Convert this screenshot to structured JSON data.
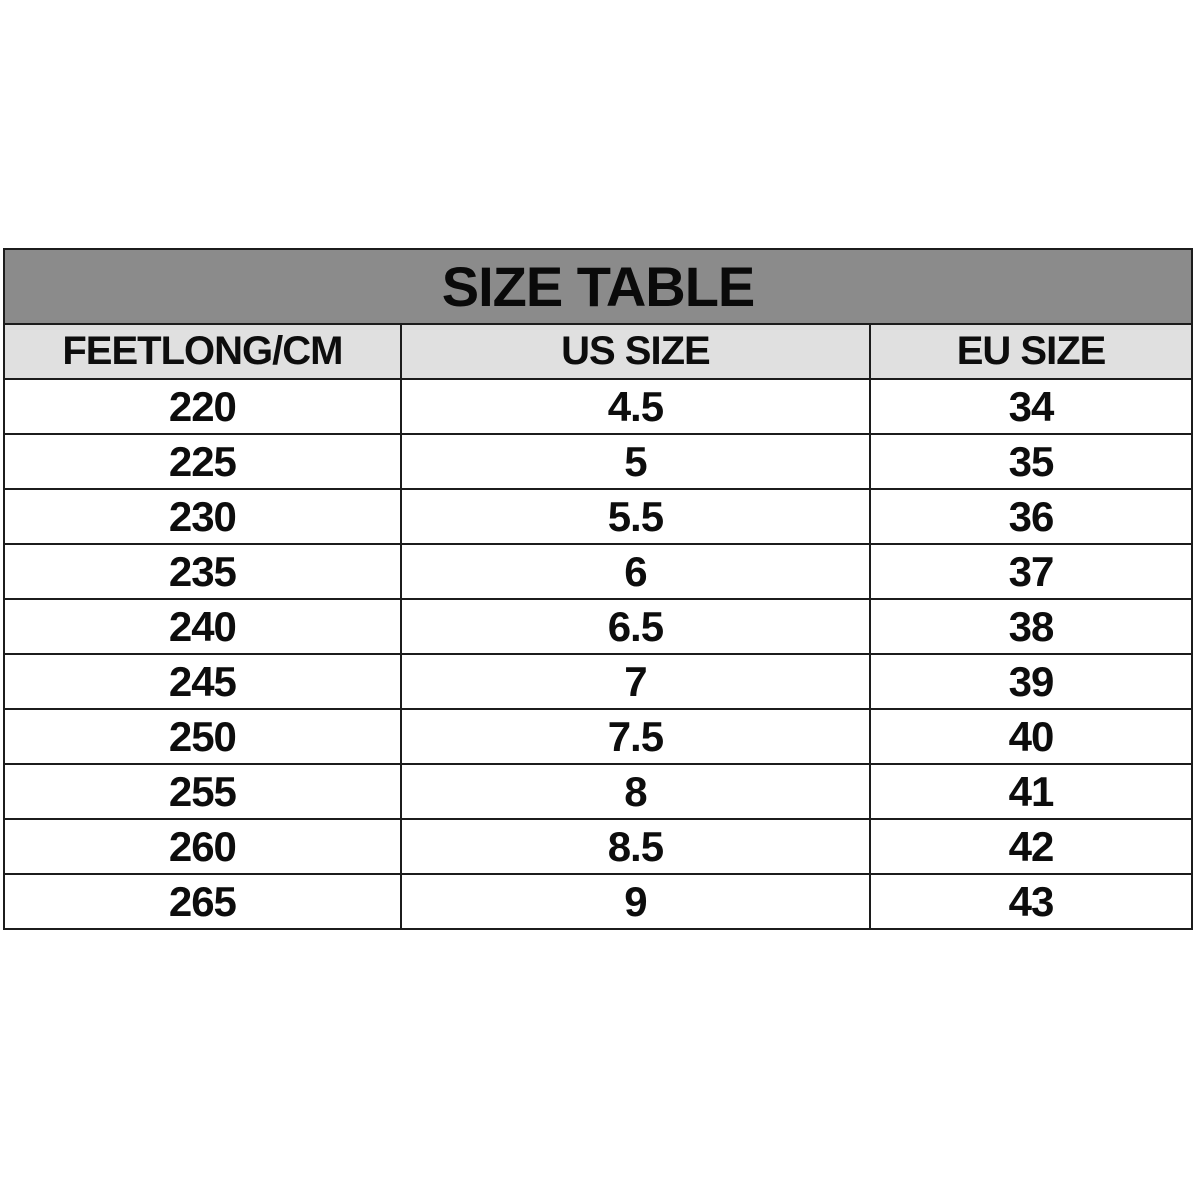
{
  "chart_data": {
    "type": "table",
    "title": "SIZE TABLE",
    "columns": [
      "FEETLONG/CM",
      "US SIZE",
      "EU SIZE"
    ],
    "rows": [
      [
        220,
        4.5,
        34
      ],
      [
        225,
        5,
        35
      ],
      [
        230,
        5.5,
        36
      ],
      [
        235,
        6,
        37
      ],
      [
        240,
        6.5,
        38
      ],
      [
        245,
        7,
        39
      ],
      [
        250,
        7.5,
        40
      ],
      [
        255,
        8,
        41
      ],
      [
        260,
        8.5,
        42
      ],
      [
        265,
        9,
        43
      ]
    ],
    "layout": {
      "grid": "on",
      "title_position": "top-banner"
    }
  },
  "style": {
    "title_bar_bg": "#8b8b8b",
    "header_row_bg": "#e0e0e0",
    "row_bg": "#ffffff",
    "border_color": "#1c1c1c",
    "text_color": "#0d0d0d",
    "page_bg": "#ffffff"
  }
}
